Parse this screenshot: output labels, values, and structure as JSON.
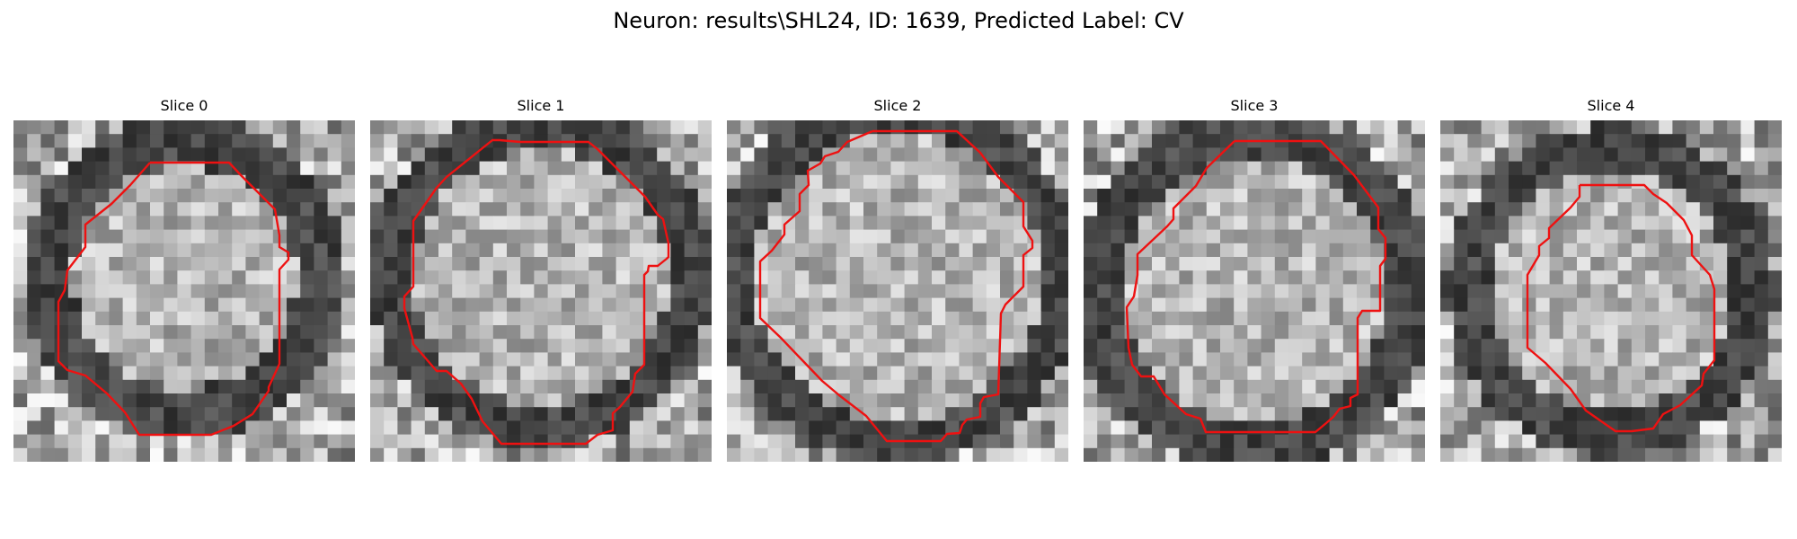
{
  "figure": {
    "title": "Neuron: results\\SHL24, ID: 1639, Predicted Label: CV"
  },
  "panels": [
    {
      "title": "Slice 0"
    },
    {
      "title": "Slice 1"
    },
    {
      "title": "Slice 2"
    },
    {
      "title": "Slice 3"
    },
    {
      "title": "Slice 4"
    }
  ],
  "colors": {
    "contour": "#ee1111",
    "background": "#ffffff",
    "image": "grayscale"
  }
}
